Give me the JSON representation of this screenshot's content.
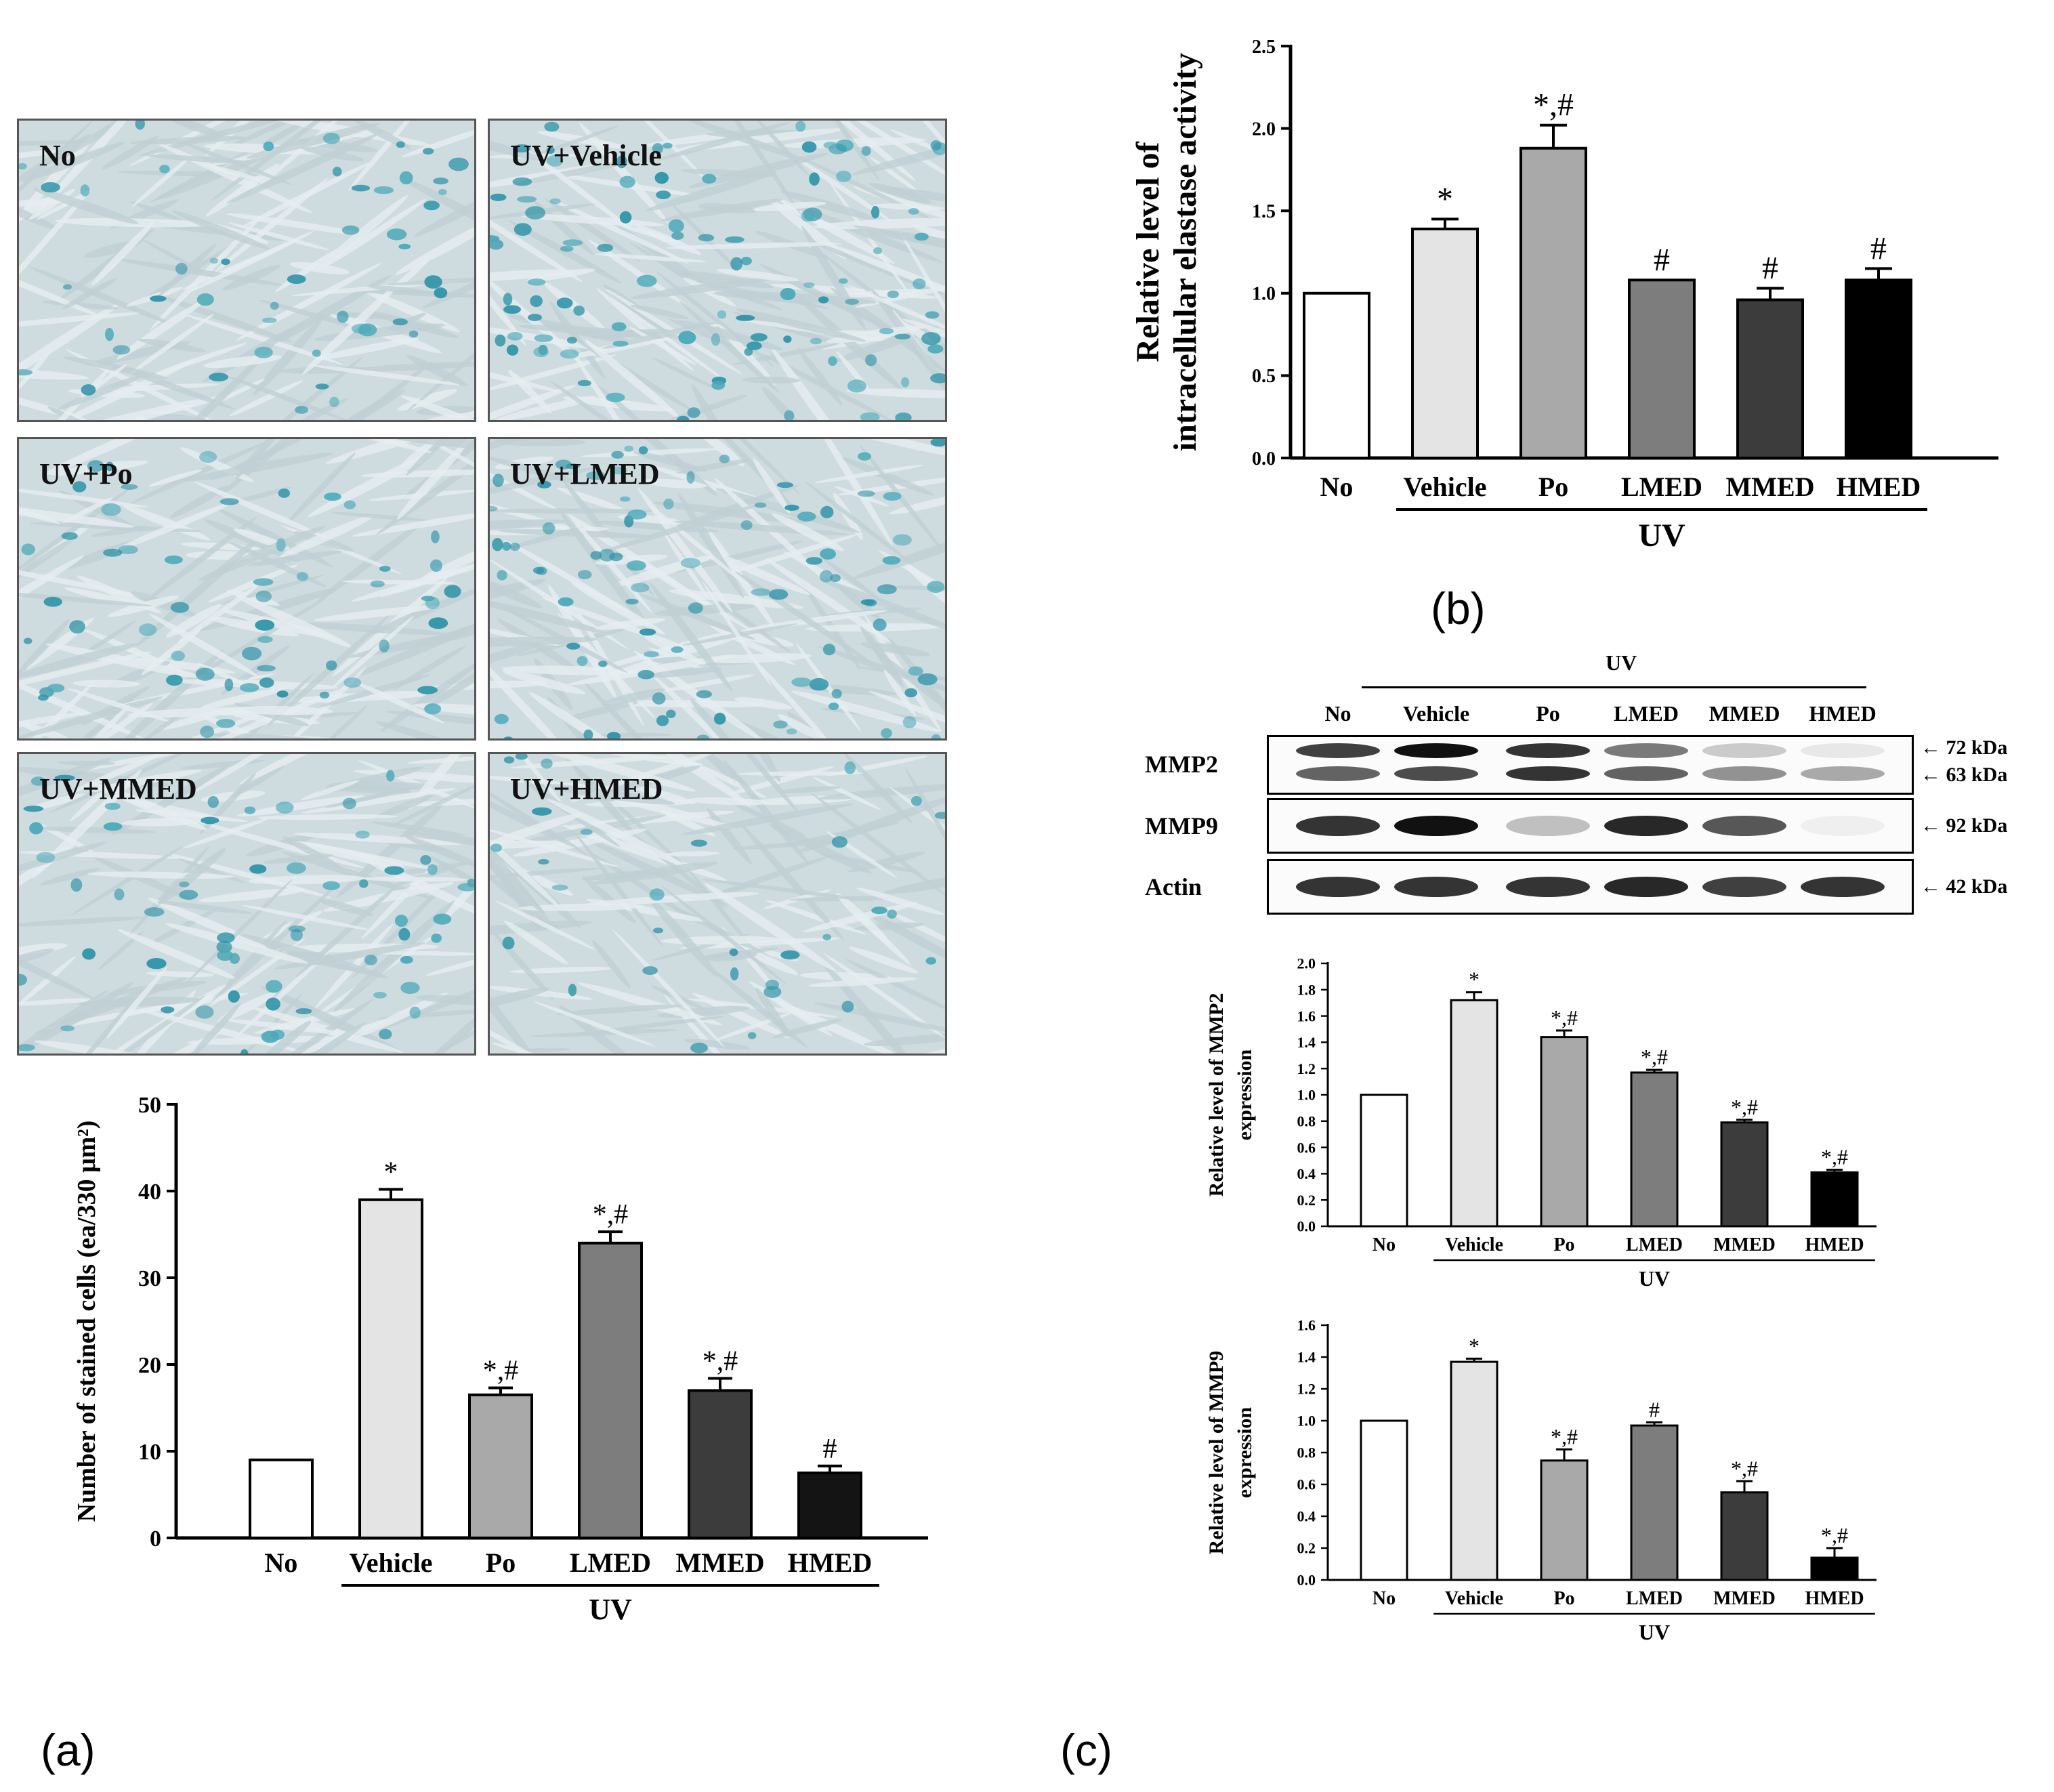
{
  "panels": {
    "a": "(a)",
    "b": "(b)",
    "c": "(c)"
  },
  "micrographs": [
    {
      "label": "No",
      "density": 0.35
    },
    {
      "label": "UV+Vehicle",
      "density": 1.0
    },
    {
      "label": "UV+Po",
      "density": 0.45
    },
    {
      "label": "UV+LMED",
      "density": 0.85
    },
    {
      "label": "UV+MMED",
      "density": 0.5
    },
    {
      "label": "UV+HMED",
      "density": 0.15
    }
  ],
  "blot": {
    "group_label": "UV",
    "lanes": [
      "No",
      "Vehicle",
      "Po",
      "LMED",
      "MMED",
      "HMED"
    ],
    "rows": [
      {
        "name": "MMP2",
        "markers": [
          "72 kDa",
          "63 kDa"
        ],
        "bands": [
          [
            0.8,
            0.65
          ],
          [
            1.0,
            0.75
          ],
          [
            0.85,
            0.85
          ],
          [
            0.55,
            0.65
          ],
          [
            0.2,
            0.45
          ],
          [
            0.08,
            0.35
          ]
        ]
      },
      {
        "name": "MMP9",
        "markers": [
          "92 kDa"
        ],
        "bands": [
          [
            0.85
          ],
          [
            1.0
          ],
          [
            0.25
          ],
          [
            0.9
          ],
          [
            0.7
          ],
          [
            0.05
          ]
        ]
      },
      {
        "name": "Actin",
        "markers": [
          "42 kDa"
        ],
        "bands": [
          [
            0.85
          ],
          [
            0.85
          ],
          [
            0.85
          ],
          [
            0.9
          ],
          [
            0.8
          ],
          [
            0.85
          ]
        ]
      }
    ]
  },
  "chart_data": [
    {
      "id": "a",
      "type": "bar",
      "categories": [
        "No",
        "Vehicle",
        "Po",
        "LMED",
        "MMED",
        "HMED"
      ],
      "values": [
        9,
        39,
        16.5,
        34,
        17,
        7.5
      ],
      "errors": [
        0,
        1.2,
        0.8,
        1.3,
        1.4,
        0.8
      ],
      "annotations": [
        "",
        "*",
        "*,#",
        "*,#",
        "*,#",
        "#"
      ],
      "colors": [
        "#ffffff",
        "#e4e4e4",
        "#a9a9a9",
        "#7d7d7d",
        "#3c3c3c",
        "#141414"
      ],
      "ylabel": "Number of stained cells (ea/330 μm²)",
      "group_label": "UV",
      "ylim": [
        0,
        50
      ],
      "yticks": [
        "0",
        "10",
        "20",
        "30",
        "40",
        "50"
      ]
    },
    {
      "id": "b",
      "type": "bar",
      "categories": [
        "No",
        "Vehicle",
        "Po",
        "LMED",
        "MMED",
        "HMED"
      ],
      "values": [
        1.0,
        1.39,
        1.88,
        1.08,
        0.96,
        1.08
      ],
      "errors": [
        0,
        0.06,
        0.14,
        0,
        0.07,
        0.07
      ],
      "annotations": [
        "",
        "*",
        "*,#",
        "#",
        "#",
        "#"
      ],
      "colors": [
        "#ffffff",
        "#e4e4e4",
        "#a9a9a9",
        "#7d7d7d",
        "#3c3c3c",
        "#000000"
      ],
      "ylabel": [
        "Relative level of",
        "intracellular elastase activity"
      ],
      "group_label": "UV",
      "ylim": [
        0,
        2.5
      ],
      "yticks": [
        "0.0",
        "0.5",
        "1.0",
        "1.5",
        "2.0",
        "2.5"
      ]
    },
    {
      "id": "c1",
      "type": "bar",
      "categories": [
        "No",
        "Vehicle",
        "Po",
        "LMED",
        "MMED",
        "HMED"
      ],
      "values": [
        1.0,
        1.72,
        1.44,
        1.17,
        0.79,
        0.41
      ],
      "errors": [
        0,
        0.06,
        0.05,
        0.02,
        0.02,
        0.02
      ],
      "annotations": [
        "",
        "*",
        "*,#",
        "*,#",
        "*,#",
        "*,#"
      ],
      "colors": [
        "#ffffff",
        "#e4e4e4",
        "#a9a9a9",
        "#7d7d7d",
        "#3c3c3c",
        "#000000"
      ],
      "ylabel": [
        "Relative level of MMP2",
        "expression"
      ],
      "group_label": "UV",
      "ylim": [
        0,
        2.0
      ],
      "yticks": [
        "0.0",
        "0.2",
        "0.4",
        "0.6",
        "0.8",
        "1.0",
        "1.2",
        "1.4",
        "1.6",
        "1.8",
        "2.0"
      ]
    },
    {
      "id": "c2",
      "type": "bar",
      "categories": [
        "No",
        "Vehicle",
        "Po",
        "LMED",
        "MMED",
        "HMED"
      ],
      "values": [
        1.0,
        1.37,
        0.75,
        0.97,
        0.55,
        0.14
      ],
      "errors": [
        0,
        0.02,
        0.07,
        0.02,
        0.07,
        0.06
      ],
      "annotations": [
        "",
        "*",
        "*,#",
        "#",
        "*,#",
        "*,#"
      ],
      "colors": [
        "#ffffff",
        "#e4e4e4",
        "#a9a9a9",
        "#7d7d7d",
        "#3c3c3c",
        "#000000"
      ],
      "ylabel": [
        "Relative level of MMP9",
        "expression"
      ],
      "group_label": "UV",
      "ylim": [
        0,
        1.6
      ],
      "yticks": [
        "0.0",
        "0.2",
        "0.4",
        "0.6",
        "0.8",
        "1.0",
        "1.2",
        "1.4",
        "1.6"
      ]
    }
  ]
}
